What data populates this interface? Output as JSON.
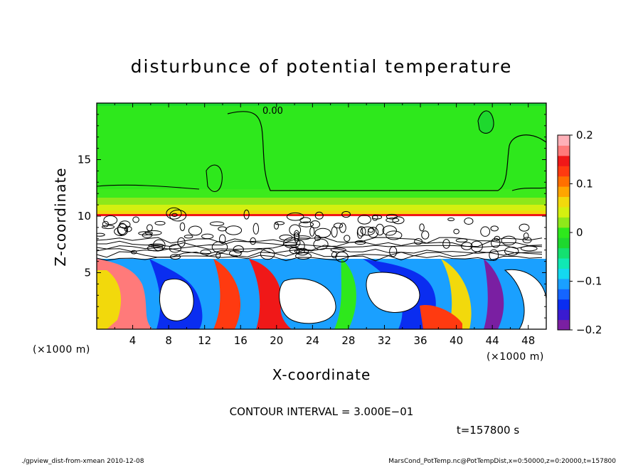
{
  "chart_data": {
    "type": "heatmap",
    "title": "disturbunce of potential temperature",
    "xlabel": "X-coordinate",
    "ylabel": "Z-coordinate",
    "x_unit": "(×1000 m)",
    "y_unit": "(×1000 m)",
    "xlim": [
      0,
      50
    ],
    "ylim": [
      0,
      20
    ],
    "x_ticks": [
      4,
      8,
      12,
      16,
      20,
      24,
      28,
      32,
      36,
      40,
      44,
      48
    ],
    "y_ticks": [
      5,
      10,
      15
    ],
    "contour_label": "0.00",
    "colorbar": {
      "range": [
        -0.2,
        0.2
      ],
      "tick_labels": [
        "0.2",
        "0.1",
        "0",
        "−0.1",
        "−0.2"
      ],
      "tick_values": [
        0.2,
        0.1,
        0,
        -0.1,
        -0.2
      ],
      "colors": [
        "#7a1fa2",
        "#3a1bd0",
        "#0a2df0",
        "#1565ff",
        "#1aa0ff",
        "#14d8f0",
        "#10e8b4",
        "#14e070",
        "#1ed82e",
        "#2ee81c",
        "#8ee81a",
        "#d4f010",
        "#f2d90c",
        "#ffa500",
        "#ff6f00",
        "#ff3a10",
        "#f01818",
        "#ff7a7a",
        "#ffb0b8"
      ]
    }
  },
  "contour_interval": "CONTOUR INTERVAL = 3.000E−01",
  "time_label": "t=157800 s",
  "footer": {
    "left": "./gpview_dist-from-xmean  2010-12-08",
    "right": "MarsCond_PotTemp.nc@PotTempDist,x=0:50000,z=0:20000,t=157800"
  },
  "colors": {
    "background": "#ffffff",
    "upper_field": "#2ee81c",
    "band": "#8ee81a"
  }
}
